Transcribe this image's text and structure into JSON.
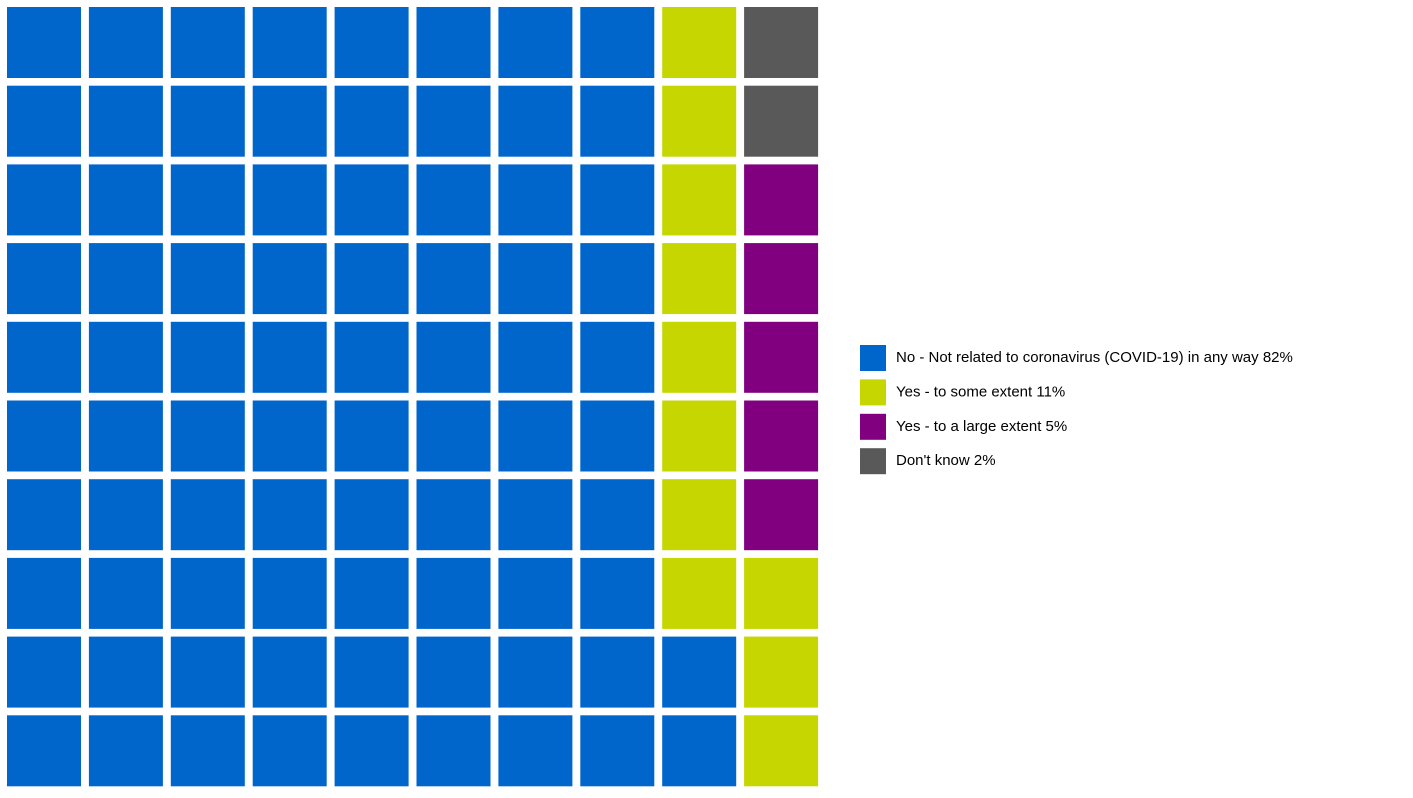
{
  "chart_data": {
    "type": "waffle",
    "categories": [
      "No - Not related to coronavirus (COVID-19) in any way",
      "Yes - to some extent",
      "Yes - to a large extent",
      "Don't know"
    ],
    "values": [
      82,
      11,
      5,
      2
    ],
    "value_labels": [
      "82%",
      "11%",
      "5%",
      "2%"
    ],
    "colors": [
      "#0066cc",
      "#c5d600",
      "#800080",
      "#595959"
    ],
    "grid_rows": 10,
    "grid_cols": 10
  }
}
